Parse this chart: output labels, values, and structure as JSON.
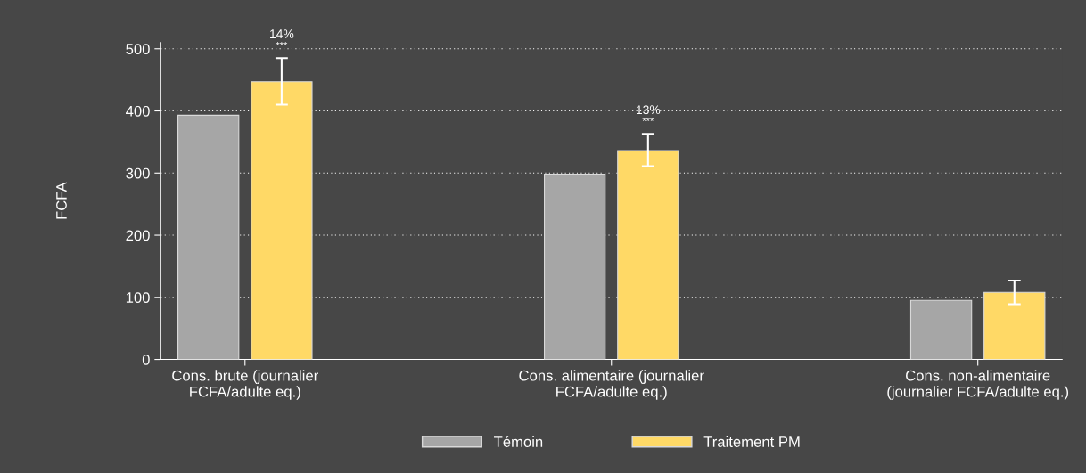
{
  "chart_data": {
    "type": "bar",
    "categories": [
      "Cons. brute (journalier\nFCFA/adulte eq.)",
      "Cons. alimentaire (journalier\nFCFA/adulte eq.)",
      "Cons. non-alimentaire\n(journalier FCFA/adulte eq.)"
    ],
    "series": [
      {
        "name": "Témoin",
        "color": "#a6a6a6",
        "values": [
          393,
          298,
          95
        ]
      },
      {
        "name": "Traitement PM",
        "color": "#ffd966",
        "values": [
          447,
          336,
          108
        ],
        "errors": [
          [
            410,
            485
          ],
          [
            311,
            363
          ],
          [
            89,
            127
          ]
        ]
      }
    ],
    "ylabel": "FCFA",
    "ylim": [
      0,
      510
    ],
    "yticks": [
      0,
      100,
      200,
      300,
      400,
      500
    ],
    "annotations": [
      "14%",
      "***",
      "13%",
      "***"
    ],
    "grid": "y",
    "legend": "bottom"
  }
}
